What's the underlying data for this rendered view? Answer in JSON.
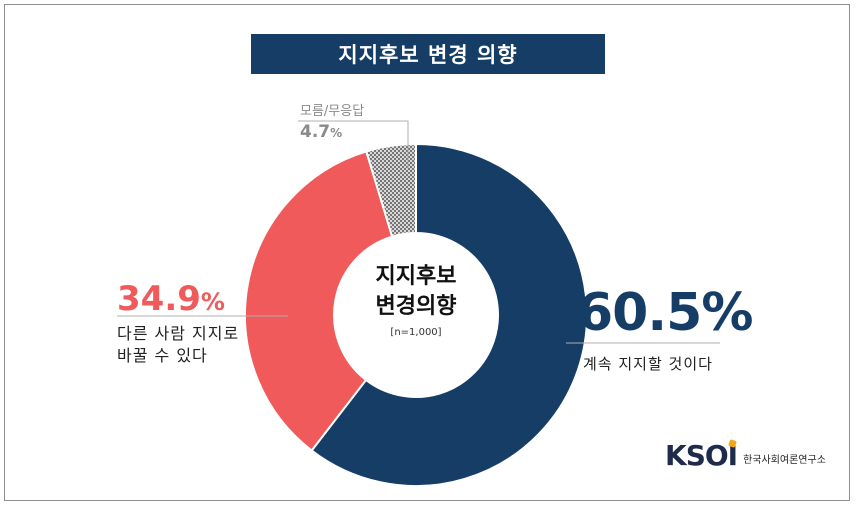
{
  "header": {
    "title": "지지후보 변경 의향"
  },
  "center": {
    "title_line1": "지지후보",
    "title_line2": "변경의향",
    "note": "[n=1,000]"
  },
  "chart_data": {
    "type": "pie",
    "variant": "donut",
    "title": "지지후보 변경 의향",
    "slices": [
      {
        "label": "계속 지지할 것이다",
        "value": 60.5,
        "value_text": "60.5",
        "unit": "%",
        "color": "#153d66"
      },
      {
        "label_line1": "다른 사람 지지로",
        "label_line2": "바꿀 수 있다",
        "value": 34.9,
        "value_text": "34.9",
        "unit": "%",
        "color": "#f05a5a"
      },
      {
        "label": "모름/무응답",
        "value": 4.7,
        "value_text": "4.7",
        "unit": "%",
        "color": "#9a9a9a"
      }
    ]
  },
  "footer": {
    "logo_mark": "KSOI",
    "logo_text": "한국사회여론연구소"
  }
}
